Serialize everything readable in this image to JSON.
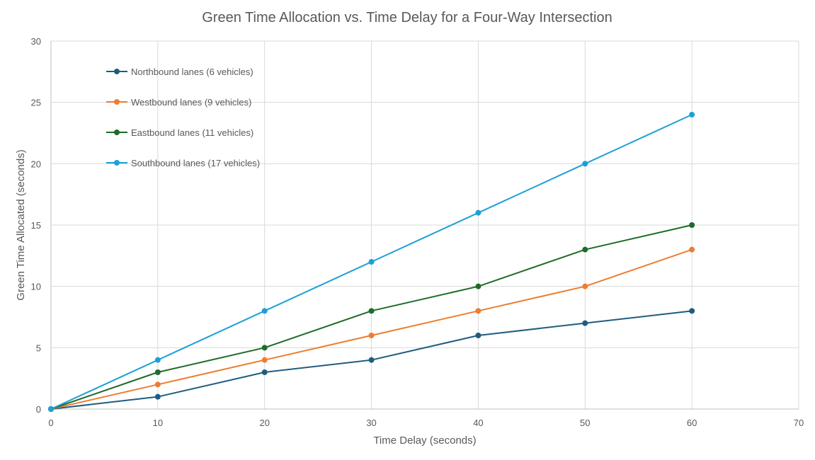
{
  "chart_data": {
    "type": "line",
    "title": "Green Time Allocation vs. Time Delay for a Four-Way Intersection",
    "xlabel": "Time Delay (seconds)",
    "ylabel": "Green Time Allocated (seconds)",
    "xlim": [
      0,
      70
    ],
    "ylim": [
      0,
      30
    ],
    "xticks": [
      0,
      10,
      20,
      30,
      40,
      50,
      60,
      70
    ],
    "yticks": [
      0,
      5,
      10,
      15,
      20,
      25,
      30
    ],
    "grid": true,
    "legend_position": "top-left",
    "x": [
      0,
      10,
      20,
      30,
      40,
      50,
      60
    ],
    "series": [
      {
        "name": "Northbound lanes (6 vehicles)",
        "color": "#1f5c80",
        "values": [
          0,
          1,
          3,
          4,
          6,
          7,
          8
        ]
      },
      {
        "name": "Westbound lanes (9 vehicles)",
        "color": "#ed7d31",
        "values": [
          0,
          2,
          4,
          6,
          8,
          10,
          13
        ]
      },
      {
        "name": "Eastbound lanes (11 vehicles)",
        "color": "#1e6b2a",
        "values": [
          0,
          3,
          5,
          8,
          10,
          13,
          15
        ]
      },
      {
        "name": "Southbound lanes (17 vehicles)",
        "color": "#1ca0d8",
        "values": [
          0,
          4,
          8,
          12,
          16,
          20,
          24
        ]
      }
    ]
  }
}
